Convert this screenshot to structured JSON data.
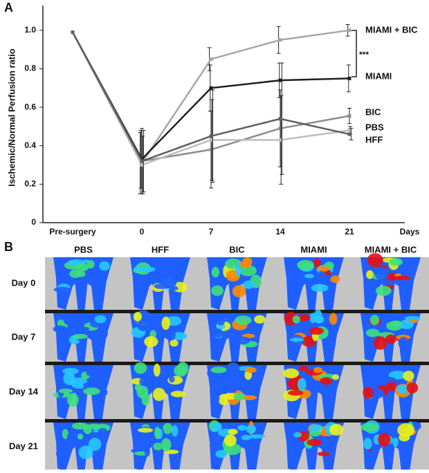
{
  "chart_data": {
    "type": "line",
    "panel_label": "A",
    "y_label": "Ischemic/Normal Perfusion ratio",
    "x_label": "Days",
    "categories": [
      "Pre-surgery",
      "0",
      "7",
      "14",
      "21"
    ],
    "ylim": [
      0,
      1.1
    ],
    "yticks": [
      0,
      0.2,
      0.4,
      0.6,
      0.8,
      {
        "value": 1,
        "label": "1.0"
      }
    ],
    "annotation": "***",
    "series": [
      {
        "name": "MIAMI + BIC",
        "color": "#a6a6a6",
        "values": [
          0.99,
          0.31,
          0.85,
          0.95,
          1.0
        ],
        "errors": [
          0,
          0.16,
          0.06,
          0.07,
          0.03
        ]
      },
      {
        "name": "MIAMI",
        "color": "#1e1e1e",
        "values": [
          0.99,
          0.33,
          0.7,
          0.74,
          0.75
        ],
        "errors": [
          0,
          0.15,
          0.12,
          0.09,
          0.07
        ]
      },
      {
        "name": "BIC",
        "color": "#8c8c8c",
        "values": [
          0.99,
          0.32,
          0.38,
          0.49,
          0.555
        ],
        "errors": [
          0,
          0.17,
          0.2,
          0.2,
          0.04
        ]
      },
      {
        "name": "PBS",
        "color": "#bdbdbd",
        "values": [
          0.99,
          0.3,
          0.43,
          0.43,
          0.48
        ],
        "errors": [
          0,
          0.15,
          0.21,
          0.23,
          0.02
        ]
      },
      {
        "name": "HFF",
        "color": "#5f5f5f",
        "values": [
          0.99,
          0.32,
          0.45,
          0.54,
          0.46
        ],
        "errors": [
          0,
          0.16,
          0.24,
          0.29,
          0.03
        ]
      }
    ]
  },
  "panel_b": {
    "label": "B",
    "columns": [
      "PBS",
      "HFF",
      "BIC",
      "MIAMI",
      "MIAMI + BIC"
    ],
    "rows": [
      "Day 0",
      "Day 7",
      "Day 14",
      "Day 21"
    ]
  }
}
